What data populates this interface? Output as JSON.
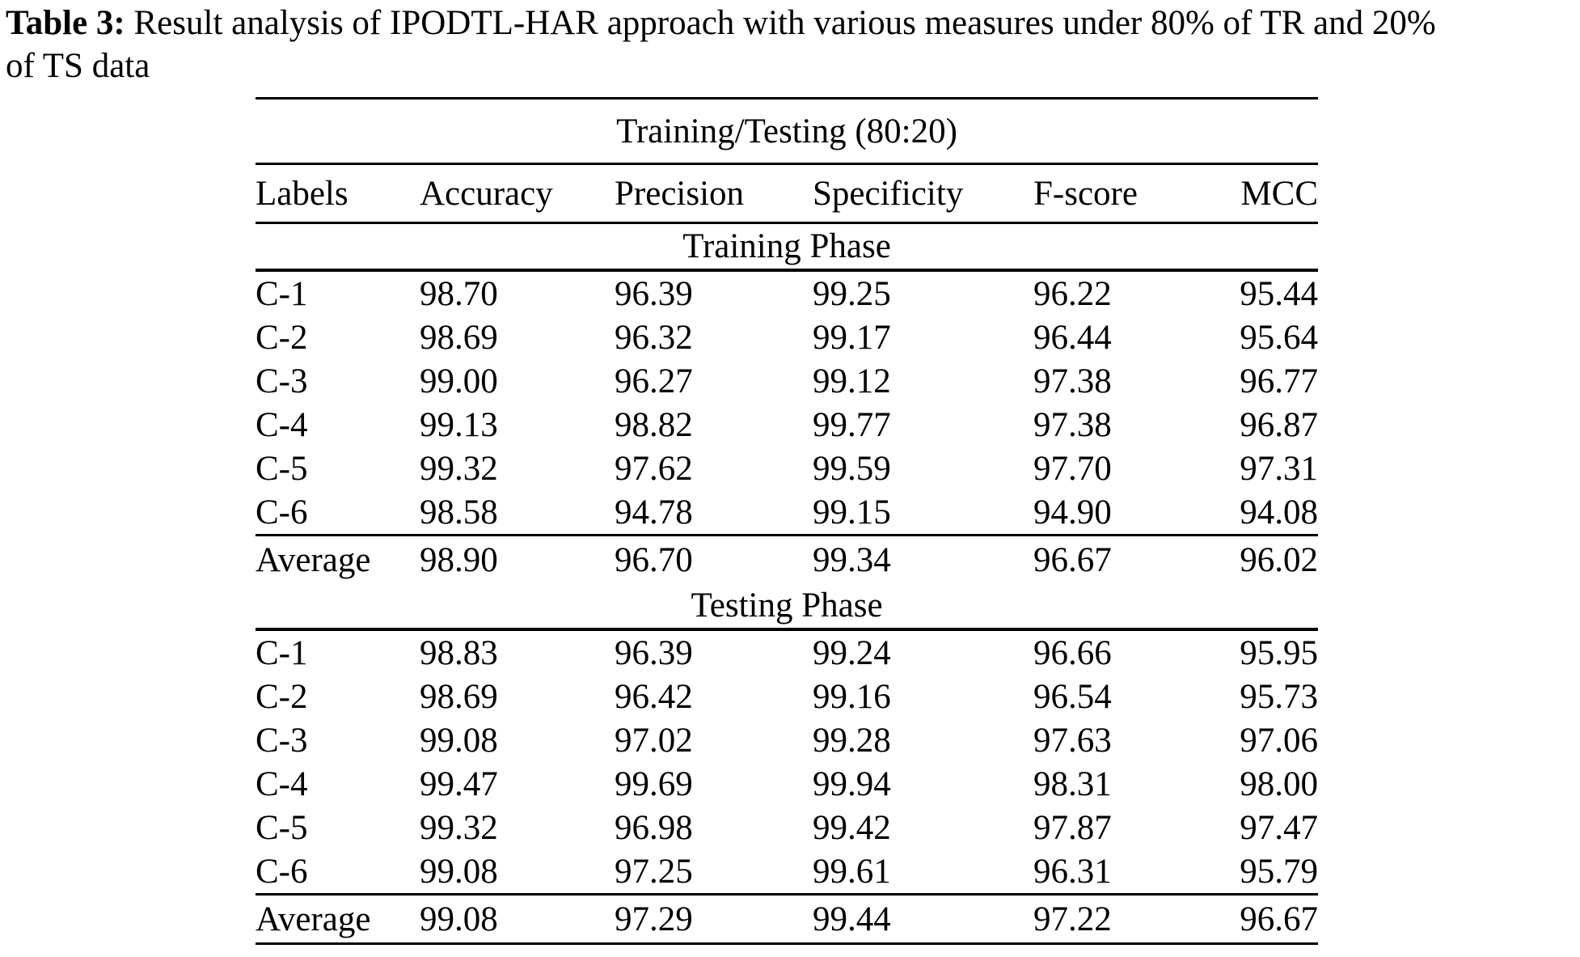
{
  "colors": {
    "text": "#000000",
    "background": "#ffffff"
  },
  "caption": {
    "label": "Table 3:",
    "line1_rest": " Result analysis of IPODTL-HAR approach with various measures under 80% of TR and 20%",
    "line2": "of TS data"
  },
  "table": {
    "span_header": "Training/Testing (80:20)",
    "columns": [
      "Labels",
      "Accuracy",
      "Precision",
      "Specificity",
      "F-score",
      "MCC"
    ],
    "sections": [
      {
        "name": "Training Phase",
        "rows": [
          [
            "C-1",
            "98.70",
            "96.39",
            "99.25",
            "96.22",
            "95.44"
          ],
          [
            "C-2",
            "98.69",
            "96.32",
            "99.17",
            "96.44",
            "95.64"
          ],
          [
            "C-3",
            "99.00",
            "96.27",
            "99.12",
            "97.38",
            "96.77"
          ],
          [
            "C-4",
            "99.13",
            "98.82",
            "99.77",
            "97.38",
            "96.87"
          ],
          [
            "C-5",
            "99.32",
            "97.62",
            "99.59",
            "97.70",
            "97.31"
          ],
          [
            "C-6",
            "98.58",
            "94.78",
            "99.15",
            "94.90",
            "94.08"
          ]
        ],
        "average": [
          "Average",
          "98.90",
          "96.70",
          "99.34",
          "96.67",
          "96.02"
        ]
      },
      {
        "name": "Testing Phase",
        "rows": [
          [
            "C-1",
            "98.83",
            "96.39",
            "99.24",
            "96.66",
            "95.95"
          ],
          [
            "C-2",
            "98.69",
            "96.42",
            "99.16",
            "96.54",
            "95.73"
          ],
          [
            "C-3",
            "99.08",
            "97.02",
            "99.28",
            "97.63",
            "97.06"
          ],
          [
            "C-4",
            "99.47",
            "99.69",
            "99.94",
            "98.31",
            "98.00"
          ],
          [
            "C-5",
            "99.32",
            "96.98",
            "99.42",
            "97.87",
            "97.47"
          ],
          [
            "C-6",
            "99.08",
            "97.25",
            "99.61",
            "96.31",
            "95.79"
          ]
        ],
        "average": [
          "Average",
          "99.08",
          "97.29",
          "99.44",
          "97.22",
          "96.67"
        ]
      }
    ]
  }
}
